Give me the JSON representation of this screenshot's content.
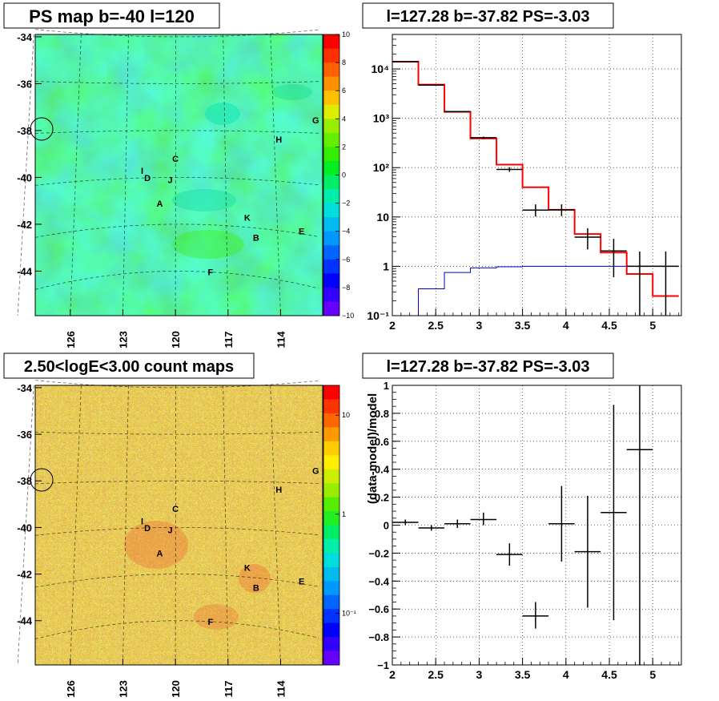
{
  "panels": {
    "ps_map": {
      "title": "PS map b=-40 l=120",
      "y_ticks": [
        "-34",
        "-36",
        "-38",
        "-40",
        "-42",
        "-44"
      ],
      "x_ticks": [
        "126",
        "123",
        "120",
        "117",
        "114"
      ],
      "colorbar_ticks": [
        "10",
        "8",
        "6",
        "4",
        "2",
        "0",
        "−2",
        "−4",
        "−6",
        "−8",
        "−10"
      ],
      "colorbar_colors": [
        "#ff0000",
        "#ff3000",
        "#ff6000",
        "#ff9000",
        "#ffc000",
        "#ddee00",
        "#99ee00",
        "#66ee00",
        "#33ee00",
        "#00ee22",
        "#00ee66",
        "#00eeaa",
        "#00dddd",
        "#00bbee",
        "#0099ff",
        "#0066ff",
        "#0033ff",
        "#0000ff",
        "#3300ff",
        "#6600ff"
      ],
      "map_base_color": "#2ee850",
      "labels": [
        "G",
        "H",
        "C",
        "I",
        "D",
        "J",
        "A",
        "K",
        "B",
        "E",
        "F"
      ]
    },
    "count_map": {
      "title": "2.50<logE<3.00 count maps",
      "y_ticks": [
        "-34",
        "-36",
        "-38",
        "-40",
        "-42",
        "-44"
      ],
      "x_ticks": [
        "126",
        "123",
        "120",
        "117",
        "114"
      ],
      "colorbar_ticks": [
        "10",
        "1",
        "10⁻¹"
      ],
      "colorbar_colors": [
        "#ff0000",
        "#ff3300",
        "#ff6600",
        "#ff9900",
        "#ffcc00",
        "#ffee00",
        "#ccee00",
        "#99ee00",
        "#55ee00",
        "#22ee22",
        "#00ee66",
        "#00eeaa",
        "#00dddd",
        "#00bbee",
        "#0099ff",
        "#0066ff",
        "#0033ff",
        "#0000ff",
        "#3300ff",
        "#6600ff"
      ],
      "labels": [
        "G",
        "H",
        "C",
        "I",
        "D",
        "J",
        "A",
        "K",
        "B",
        "E",
        "F"
      ]
    },
    "spectrum": {
      "title": "l=127.28 b=-37.82 PS=-3.03",
      "x_ticks": [
        "2",
        "2.5",
        "3",
        "3.5",
        "4",
        "4.5",
        "5"
      ],
      "y_ticks": [
        "10⁻¹",
        "1",
        "10",
        "10²",
        "10³",
        "10⁴"
      ]
    },
    "residual": {
      "title": "l=127.28 b=-37.82 PS=-3.03",
      "ylabel": "(data-model)/model",
      "x_ticks": [
        "2",
        "2.5",
        "3",
        "3.5",
        "4",
        "4.5",
        "5"
      ],
      "y_ticks": [
        "−1",
        "−0.8",
        "−0.6",
        "−0.4",
        "−0.2",
        "0",
        "0.2",
        "0.4",
        "0.6",
        "0.8",
        "1"
      ]
    }
  },
  "chart_data": [
    {
      "type": "heatmap",
      "title": "PS map b=-40 l=120",
      "xlabel": "",
      "ylabel": "",
      "x_range": [
        128,
        111.6
      ],
      "y_range": [
        -45.9,
        -33.9
      ],
      "color_range": [
        -10,
        10
      ],
      "x_tick_values": [
        126,
        123,
        120,
        117,
        114
      ],
      "y_tick_values": [
        -34,
        -36,
        -38,
        -40,
        -42,
        -44
      ],
      "colorbar_tick_values": [
        10,
        8,
        6,
        4,
        2,
        0,
        -2,
        -4,
        -6,
        -8,
        -10
      ],
      "sources": [
        {
          "name": "G",
          "l": 112.0,
          "b": -37.5
        },
        {
          "name": "H",
          "l": 114.1,
          "b": -38.3
        },
        {
          "name": "C",
          "l": 120.0,
          "b": -39.2
        },
        {
          "name": "I",
          "l": 121.9,
          "b": -39.7
        },
        {
          "name": "D",
          "l": 121.6,
          "b": -40.0
        },
        {
          "name": "J",
          "l": 120.3,
          "b": -40.1
        },
        {
          "name": "A",
          "l": 120.9,
          "b": -41.1
        },
        {
          "name": "K",
          "l": 115.9,
          "b": -41.6
        },
        {
          "name": "B",
          "l": 115.4,
          "b": -42.4
        },
        {
          "name": "E",
          "l": 112.8,
          "b": -41.9
        },
        {
          "name": "F",
          "l": 118.0,
          "b": -44.0
        }
      ]
    },
    {
      "type": "heatmap",
      "title": "2.50<logE<3.00 count maps",
      "xlabel": "",
      "ylabel": "",
      "x_range": [
        128,
        111.6
      ],
      "y_range": [
        -45.9,
        -33.9
      ],
      "color_scale": "log",
      "color_range": [
        0.03,
        20
      ],
      "x_tick_values": [
        126,
        123,
        120,
        117,
        114
      ],
      "y_tick_values": [
        -34,
        -36,
        -38,
        -40,
        -42,
        -44
      ],
      "colorbar_tick_values": [
        10,
        1,
        0.1
      ],
      "sources": [
        {
          "name": "G",
          "l": 112.0,
          "b": -37.5
        },
        {
          "name": "H",
          "l": 114.1,
          "b": -38.3
        },
        {
          "name": "C",
          "l": 120.0,
          "b": -39.2
        },
        {
          "name": "I",
          "l": 121.9,
          "b": -39.7
        },
        {
          "name": "D",
          "l": 121.6,
          "b": -40.0
        },
        {
          "name": "J",
          "l": 120.3,
          "b": -40.1
        },
        {
          "name": "A",
          "l": 120.9,
          "b": -41.1
        },
        {
          "name": "K",
          "l": 115.9,
          "b": -41.6
        },
        {
          "name": "B",
          "l": 115.4,
          "b": -42.4
        },
        {
          "name": "E",
          "l": 112.8,
          "b": -41.9
        },
        {
          "name": "F",
          "l": 118.0,
          "b": -44.0
        }
      ]
    },
    {
      "type": "line",
      "title": "l=127.28 b=-37.82 PS=-3.03",
      "xlabel": "",
      "ylabel": "",
      "xlim": [
        2,
        5.33
      ],
      "ylim": [
        0.1,
        50000
      ],
      "y_scale": "log",
      "grid": true,
      "x_tick_values": [
        2,
        2.5,
        3,
        3.5,
        4,
        4.5,
        5
      ],
      "y_tick_values": [
        0.1,
        1,
        10,
        100,
        1000,
        10000
      ],
      "bin_edges": [
        2.0,
        2.3,
        2.6,
        2.9,
        3.2,
        3.5,
        3.8,
        4.1,
        4.4,
        4.7,
        5.0,
        5.3
      ],
      "series": [
        {
          "color": "#ff0000",
          "style": "histogram",
          "values": [
            14000,
            4800,
            1350,
            390,
            115,
            40,
            14,
            4.5,
            1.9,
            0.7,
            0.25
          ]
        },
        {
          "color": "#0000cc",
          "style": "histogram",
          "values": [
            0.1,
            0.35,
            0.75,
            0.93,
            0.98,
            1.0,
            1.0,
            1.0,
            1.0,
            1.0,
            1.0
          ]
        },
        {
          "color": "#000000",
          "style": "points",
          "points": [
            {
              "x": 2.15,
              "y": 14000,
              "ylo": 13900,
              "yhi": 14100
            },
            {
              "x": 2.45,
              "y": 4700,
              "ylo": 4630,
              "yhi": 4770
            },
            {
              "x": 2.75,
              "y": 1370,
              "ylo": 1330,
              "yhi": 1410
            },
            {
              "x": 3.05,
              "y": 405,
              "ylo": 385,
              "yhi": 425
            },
            {
              "x": 3.35,
              "y": 92,
              "ylo": 82,
              "yhi": 102
            },
            {
              "x": 3.65,
              "y": 13.8,
              "ylo": 10.2,
              "yhi": 18
            },
            {
              "x": 3.95,
              "y": 14,
              "ylo": 10.4,
              "yhi": 18
            },
            {
              "x": 4.25,
              "y": 3.9,
              "ylo": 2.2,
              "yhi": 5.9
            },
            {
              "x": 4.55,
              "y": 2.05,
              "ylo": 0.6,
              "yhi": 3.6
            },
            {
              "x": 4.85,
              "y": 1.0,
              "ylo": 0.1,
              "yhi": 2.0
            },
            {
              "x": 5.15,
              "y": 1.0,
              "ylo": 0.1,
              "yhi": 2.0
            }
          ]
        }
      ]
    },
    {
      "type": "scatter",
      "title": "l=127.28 b=-37.82 PS=-3.03",
      "xlabel": "",
      "ylabel": "(data-model)/model",
      "xlim": [
        2,
        5.33
      ],
      "ylim": [
        -1,
        1
      ],
      "grid": true,
      "x_tick_values": [
        2,
        2.5,
        3,
        3.5,
        4,
        4.5,
        5
      ],
      "y_tick_values": [
        -1,
        -0.8,
        -0.6,
        -0.4,
        -0.2,
        0,
        0.2,
        0.4,
        0.6,
        0.8,
        1
      ],
      "series": [
        {
          "color": "#000000",
          "points": [
            {
              "x": 2.15,
              "y": 0.02,
              "ylo": 0.0,
              "yhi": 0.04
            },
            {
              "x": 2.45,
              "y": -0.02,
              "ylo": -0.04,
              "yhi": 0.0
            },
            {
              "x": 2.75,
              "y": 0.01,
              "ylo": -0.02,
              "yhi": 0.04
            },
            {
              "x": 3.05,
              "y": 0.04,
              "ylo": 0.0,
              "yhi": 0.09
            },
            {
              "x": 3.35,
              "y": -0.21,
              "ylo": -0.29,
              "yhi": -0.13
            },
            {
              "x": 3.65,
              "y": -0.65,
              "ylo": -0.74,
              "yhi": -0.55
            },
            {
              "x": 3.95,
              "y": 0.01,
              "ylo": -0.26,
              "yhi": 0.28
            },
            {
              "x": 4.25,
              "y": -0.19,
              "ylo": -0.59,
              "yhi": 0.21
            },
            {
              "x": 4.55,
              "y": 0.09,
              "ylo": -0.68,
              "yhi": 0.86
            },
            {
              "x": 4.85,
              "y": 0.54,
              "ylo": -1.0,
              "yhi": 1.0
            }
          ]
        }
      ]
    }
  ]
}
